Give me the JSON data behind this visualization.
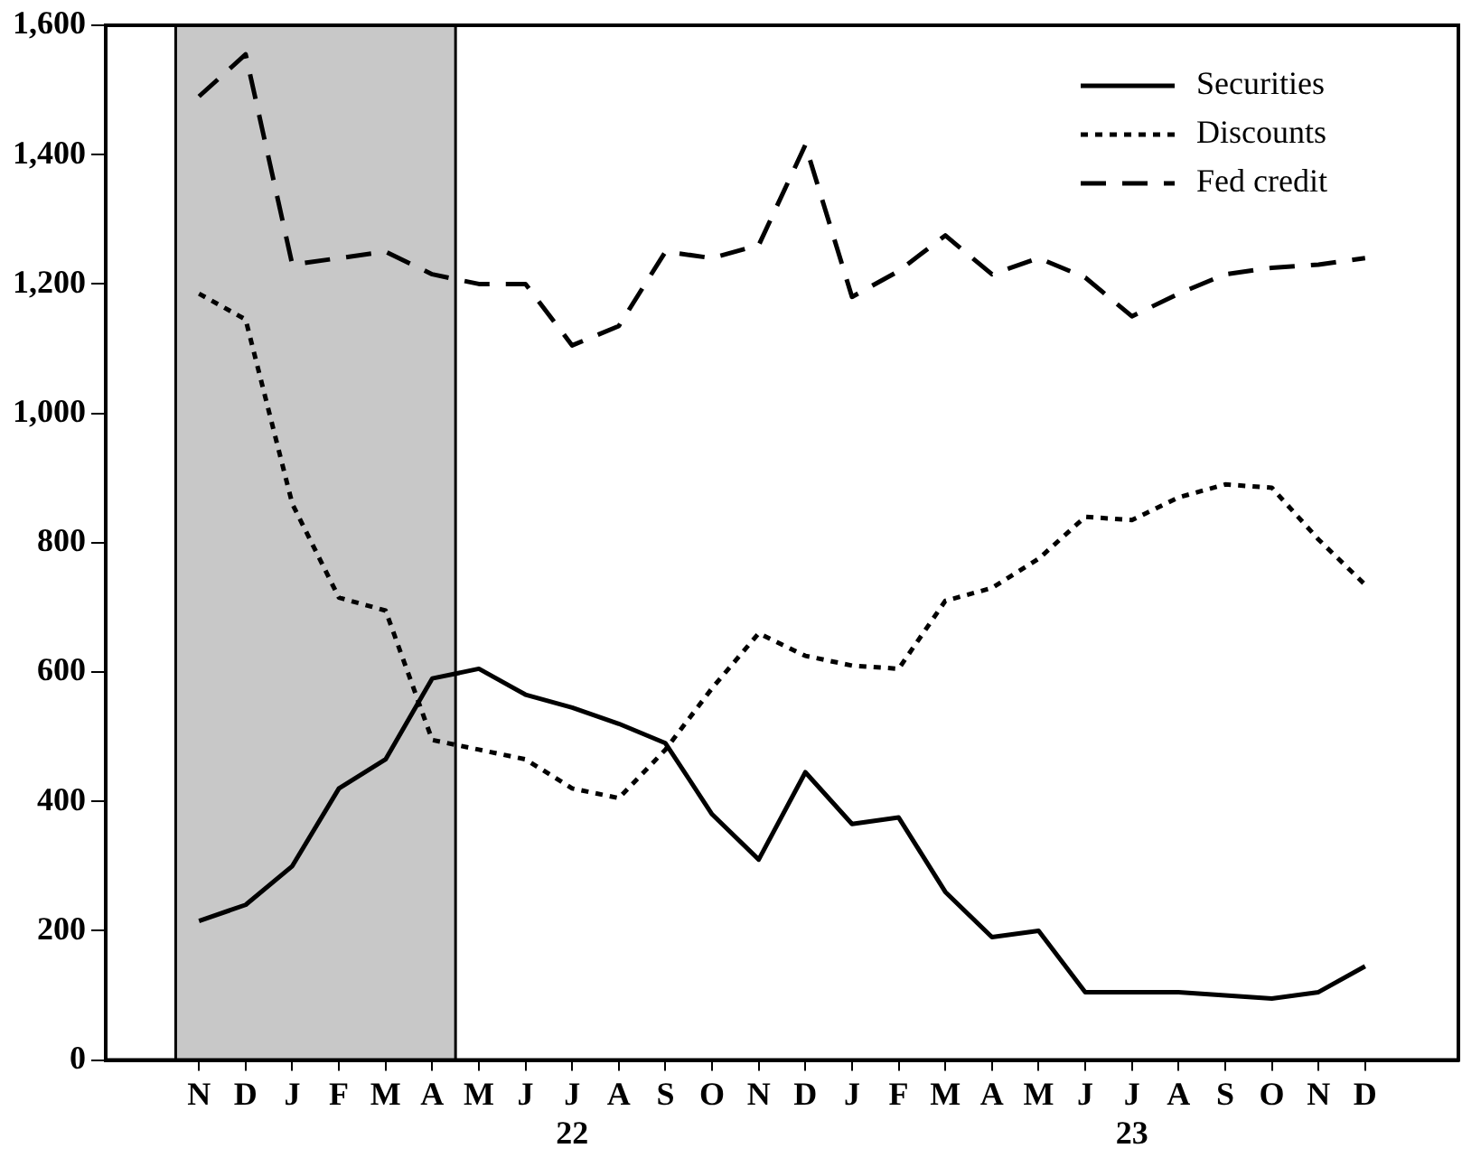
{
  "chart_data": {
    "type": "line",
    "x": [
      "1921-11",
      "1921-12",
      "1922-01",
      "1922-02",
      "1922-03",
      "1922-04",
      "1922-05",
      "1922-06",
      "1922-07",
      "1922-08",
      "1922-09",
      "1922-10",
      "1922-11",
      "1922-12",
      "1923-01",
      "1923-02",
      "1923-03",
      "1923-04",
      "1923-05",
      "1923-06",
      "1923-07",
      "1923-08",
      "1923-09",
      "1923-10",
      "1923-11",
      "1923-12"
    ],
    "series": [
      {
        "name": "Securities",
        "color": "#000000",
        "line_style": "solid",
        "values": [
          215,
          240,
          300,
          420,
          465,
          590,
          605,
          565,
          545,
          520,
          490,
          380,
          310,
          445,
          365,
          375,
          260,
          190,
          200,
          105,
          105,
          105,
          100,
          95,
          105,
          145
        ]
      },
      {
        "name": "Discounts",
        "color": "#000000",
        "line_style": "dotted",
        "values": [
          1185,
          1145,
          860,
          715,
          695,
          495,
          480,
          465,
          420,
          405,
          480,
          575,
          660,
          625,
          610,
          605,
          710,
          730,
          775,
          840,
          835,
          870,
          890,
          885,
          805,
          735
        ]
      },
      {
        "name": "Fed credit",
        "color": "#000000",
        "line_style": "dashed",
        "values": [
          1490,
          1555,
          1230,
          1240,
          1250,
          1215,
          1200,
          1200,
          1105,
          1135,
          1250,
          1240,
          1260,
          1415,
          1180,
          1220,
          1275,
          1215,
          1240,
          1210,
          1150,
          1185,
          1215,
          1225,
          1230,
          1240
        ]
      }
    ],
    "xlim": [
      "1921-09",
      "1924-02"
    ],
    "xticks": [
      {
        "value": "1921-11",
        "label": "N"
      },
      {
        "value": "1921-12",
        "label": "D"
      },
      {
        "value": "1922-01",
        "label": "J"
      },
      {
        "value": "1922-02",
        "label": "F"
      },
      {
        "value": "1922-03",
        "label": "M"
      },
      {
        "value": "1922-04",
        "label": "A"
      },
      {
        "value": "1922-05",
        "label": "M"
      },
      {
        "value": "1922-06",
        "label": "J"
      },
      {
        "value": "1922-07",
        "label": "J\n22"
      },
      {
        "value": "1922-08",
        "label": "A"
      },
      {
        "value": "1922-09",
        "label": "S"
      },
      {
        "value": "1922-10",
        "label": "O"
      },
      {
        "value": "1922-11",
        "label": "N"
      },
      {
        "value": "1922-12",
        "label": "D"
      },
      {
        "value": "1923-01",
        "label": "J"
      },
      {
        "value": "1923-02",
        "label": "F"
      },
      {
        "value": "1923-03",
        "label": "M"
      },
      {
        "value": "1923-04",
        "label": "A"
      },
      {
        "value": "1923-05",
        "label": "M"
      },
      {
        "value": "1923-06",
        "label": "J"
      },
      {
        "value": "1923-07",
        "label": "J\n23"
      },
      {
        "value": "1923-08",
        "label": "A"
      },
      {
        "value": "1923-09",
        "label": "S"
      },
      {
        "value": "1923-10",
        "label": "O"
      },
      {
        "value": "1923-11",
        "label": "N"
      },
      {
        "value": "1923-12",
        "label": "D"
      }
    ],
    "ylim": [
      0,
      1600
    ],
    "yticks": [
      0,
      {
        "value": 200,
        "label": "200"
      },
      400,
      600,
      800,
      {
        "value": 1000,
        "label": "1,000"
      },
      {
        "value": 1200,
        "label": "1,200"
      },
      {
        "value": 1400,
        "label": "1,400"
      },
      {
        "value": 1600,
        "label": "1,600"
      }
    ],
    "bands": [
      {
        "axis": "x",
        "from": "1921-10-16",
        "to": "1922-04-16",
        "color": "#c8c8c8"
      }
    ],
    "legend": "top right",
    "marker": "none",
    "grid": false
  }
}
